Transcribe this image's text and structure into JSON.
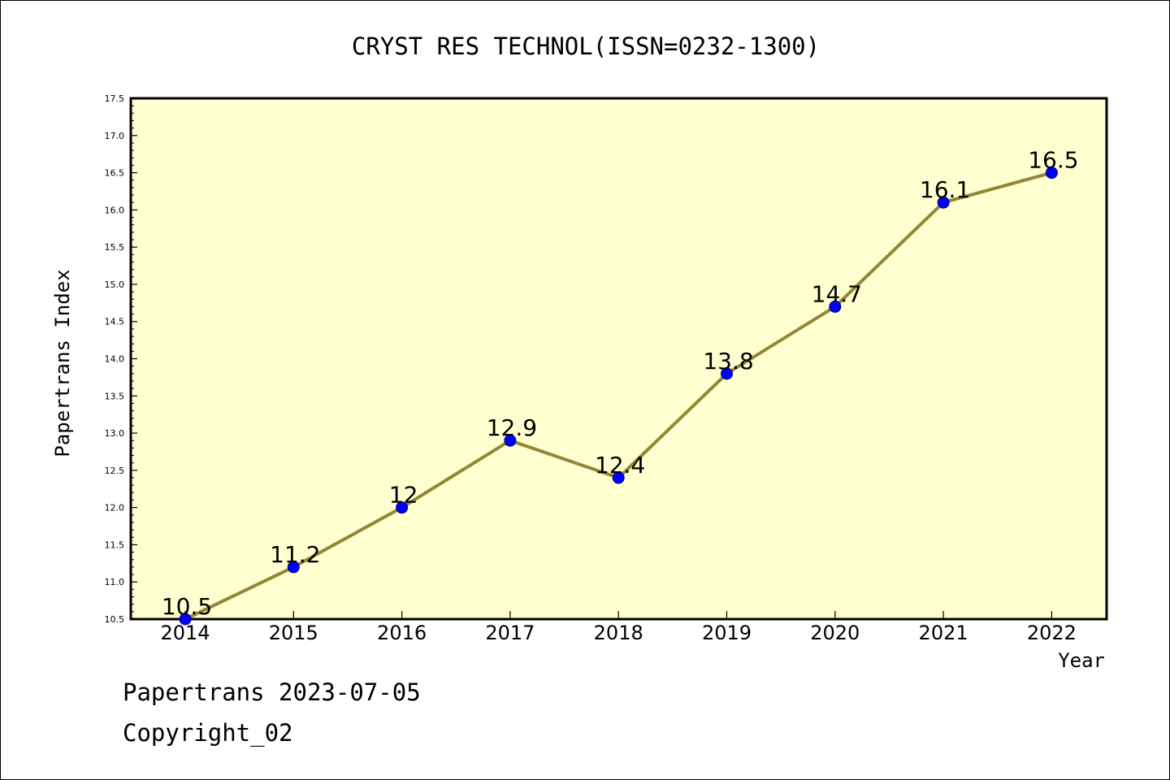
{
  "chart_data": {
    "type": "line",
    "title": "CRYST RES TECHNOL(ISSN=0232-1300)",
    "xlabel": "Year",
    "ylabel": "Papertrans Index",
    "categories": [
      "2014",
      "2015",
      "2016",
      "2017",
      "2018",
      "2019",
      "2020",
      "2021",
      "2022"
    ],
    "values": [
      10.5,
      11.2,
      12,
      12.9,
      12.4,
      13.8,
      14.7,
      16.1,
      16.5
    ],
    "data_labels": [
      "10.5",
      "11.2",
      "12",
      "12.9",
      "12.4",
      "13.8",
      "14.7",
      "16.1",
      "16.5"
    ],
    "ylim": [
      10.5,
      17.5
    ],
    "yticks": [
      "10.5",
      "11.0",
      "11.5",
      "12.0",
      "12.5",
      "13.0",
      "13.5",
      "14.0",
      "14.5",
      "15.0",
      "15.5",
      "16.0",
      "16.5",
      "17.0",
      "17.5"
    ],
    "grid": false,
    "colors": {
      "plot_background": "#ffffd0",
      "line": "#948638",
      "marker": "#0000ff",
      "marker_edge": "#000080"
    }
  },
  "footer": {
    "date_line": "Papertrans 2023-07-05",
    "copyright": "Copyright_02"
  }
}
